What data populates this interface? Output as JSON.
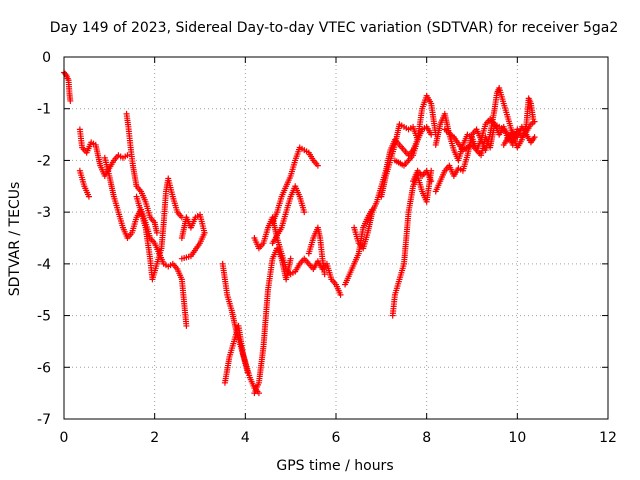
{
  "chart_data": {
    "type": "scatter",
    "title": "Day 149 of 2023, Sidereal Day-to-day VTEC variation (SDTVAR) for receiver 5ga2",
    "xlabel": "GPS time / hours",
    "ylabel": "SDTVAR / TECUs",
    "xlim": [
      0,
      12
    ],
    "ylim": [
      -7,
      0
    ],
    "xticks": [
      0,
      2,
      4,
      6,
      8,
      10,
      12
    ],
    "yticks": [
      0,
      -1,
      -2,
      -3,
      -4,
      -5,
      -6,
      -7
    ],
    "grid": true,
    "marker": "plus",
    "color": "#ff0000",
    "series": [
      {
        "segments": [
          [
            [
              0.0,
              -0.3
            ],
            [
              0.05,
              -0.35
            ],
            [
              0.1,
              -0.45
            ],
            [
              0.12,
              -0.7
            ],
            [
              0.14,
              -0.85
            ]
          ],
          [
            [
              0.35,
              -1.4
            ],
            [
              0.4,
              -1.75
            ],
            [
              0.5,
              -1.85
            ],
            [
              0.6,
              -1.65
            ],
            [
              0.7,
              -1.7
            ],
            [
              0.8,
              -2.1
            ],
            [
              0.9,
              -2.3
            ],
            [
              1.0,
              -2.15
            ],
            [
              1.1,
              -2.0
            ],
            [
              1.2,
              -1.9
            ],
            [
              1.3,
              -1.95
            ],
            [
              1.4,
              -1.9
            ]
          ],
          [
            [
              0.35,
              -2.2
            ],
            [
              0.45,
              -2.5
            ],
            [
              0.55,
              -2.7
            ]
          ],
          [
            [
              0.9,
              -1.95
            ],
            [
              1.0,
              -2.3
            ],
            [
              1.1,
              -2.7
            ],
            [
              1.2,
              -3.0
            ],
            [
              1.3,
              -3.3
            ],
            [
              1.4,
              -3.5
            ],
            [
              1.5,
              -3.4
            ],
            [
              1.6,
              -3.1
            ],
            [
              1.7,
              -2.95
            ],
            [
              1.8,
              -3.2
            ],
            [
              1.9,
              -3.5
            ],
            [
              2.0,
              -3.6
            ],
            [
              2.1,
              -3.8
            ],
            [
              2.2,
              -4.0
            ],
            [
              2.3,
              -4.05
            ],
            [
              2.4,
              -4.0
            ],
            [
              2.5,
              -4.1
            ],
            [
              2.6,
              -4.3
            ],
            [
              2.7,
              -5.2
            ]
          ],
          [
            [
              1.38,
              -1.1
            ],
            [
              1.42,
              -1.35
            ],
            [
              1.47,
              -1.75
            ],
            [
              1.52,
              -2.1
            ],
            [
              1.6,
              -2.5
            ],
            [
              1.7,
              -2.6
            ],
            [
              1.8,
              -2.8
            ],
            [
              1.9,
              -3.1
            ],
            [
              2.0,
              -3.2
            ],
            [
              2.05,
              -3.4
            ]
          ],
          [
            [
              1.6,
              -2.7
            ],
            [
              1.7,
              -3.0
            ],
            [
              1.8,
              -3.3
            ],
            [
              1.9,
              -3.9
            ],
            [
              1.95,
              -4.3
            ],
            [
              2.05,
              -4.0
            ],
            [
              2.15,
              -3.7
            ],
            [
              2.2,
              -3.2
            ],
            [
              2.25,
              -2.6
            ],
            [
              2.3,
              -2.35
            ],
            [
              2.4,
              -2.7
            ],
            [
              2.5,
              -3.0
            ],
            [
              2.6,
              -3.1
            ]
          ],
          [
            [
              2.6,
              -3.5
            ],
            [
              2.7,
              -3.1
            ],
            [
              2.8,
              -3.3
            ],
            [
              2.9,
              -3.1
            ],
            [
              3.0,
              -3.05
            ],
            [
              3.1,
              -3.4
            ]
          ],
          [
            [
              2.6,
              -3.9
            ],
            [
              2.8,
              -3.85
            ],
            [
              3.0,
              -3.6
            ],
            [
              3.1,
              -3.4
            ]
          ],
          [
            [
              3.5,
              -4.0
            ],
            [
              3.6,
              -4.6
            ],
            [
              3.7,
              -4.9
            ],
            [
              3.8,
              -5.3
            ],
            [
              3.9,
              -5.6
            ],
            [
              4.0,
              -5.9
            ],
            [
              4.1,
              -6.2
            ],
            [
              4.2,
              -6.4
            ],
            [
              4.3,
              -6.5
            ]
          ],
          [
            [
              3.55,
              -6.3
            ],
            [
              3.65,
              -5.8
            ],
            [
              3.75,
              -5.5
            ],
            [
              3.85,
              -5.2
            ],
            [
              3.95,
              -5.75
            ],
            [
              4.05,
              -6.1
            ]
          ],
          [
            [
              4.2,
              -6.5
            ],
            [
              4.3,
              -6.3
            ],
            [
              4.4,
              -5.6
            ],
            [
              4.5,
              -4.5
            ],
            [
              4.6,
              -3.9
            ],
            [
              4.7,
              -3.7
            ],
            [
              4.8,
              -3.9
            ],
            [
              4.9,
              -4.3
            ],
            [
              5.0,
              -3.9
            ]
          ],
          [
            [
              4.2,
              -3.5
            ],
            [
              4.3,
              -3.7
            ],
            [
              4.4,
              -3.6
            ],
            [
              4.5,
              -3.3
            ],
            [
              4.6,
              -3.1
            ],
            [
              4.7,
              -3.5
            ],
            [
              4.8,
              -3.8
            ],
            [
              4.9,
              -4.1
            ],
            [
              5.0,
              -4.2
            ],
            [
              5.1,
              -4.15
            ],
            [
              5.2,
              -4.0
            ],
            [
              5.3,
              -3.9
            ],
            [
              5.4,
              -4.0
            ],
            [
              5.5,
              -4.1
            ],
            [
              5.6,
              -3.95
            ],
            [
              5.7,
              -4.1
            ],
            [
              5.8,
              -4.0
            ],
            [
              5.9,
              -4.3
            ],
            [
              6.0,
              -4.4
            ],
            [
              6.1,
              -4.6
            ]
          ],
          [
            [
              4.6,
              -3.2
            ],
            [
              4.7,
              -3.0
            ],
            [
              4.8,
              -2.7
            ],
            [
              4.9,
              -2.5
            ],
            [
              5.0,
              -2.3
            ],
            [
              5.1,
              -2.0
            ],
            [
              5.2,
              -1.75
            ],
            [
              5.3,
              -1.8
            ],
            [
              5.4,
              -1.85
            ],
            [
              5.5,
              -2.0
            ],
            [
              5.6,
              -2.1
            ]
          ],
          [
            [
              4.6,
              -3.6
            ],
            [
              4.8,
              -3.3
            ],
            [
              4.9,
              -3.0
            ],
            [
              5.0,
              -2.7
            ],
            [
              5.1,
              -2.5
            ],
            [
              5.2,
              -2.7
            ],
            [
              5.3,
              -3.0
            ]
          ],
          [
            [
              5.4,
              -3.8
            ],
            [
              5.5,
              -3.5
            ],
            [
              5.6,
              -3.3
            ],
            [
              5.65,
              -3.5
            ],
            [
              5.7,
              -3.9
            ],
            [
              5.75,
              -4.2
            ]
          ],
          [
            [
              6.4,
              -3.3
            ],
            [
              6.5,
              -3.6
            ],
            [
              6.6,
              -3.7
            ],
            [
              6.7,
              -3.4
            ],
            [
              6.8,
              -3.0
            ],
            [
              6.9,
              -2.8
            ],
            [
              7.0,
              -2.5
            ],
            [
              7.1,
              -2.2
            ],
            [
              7.2,
              -1.8
            ],
            [
              7.3,
              -1.6
            ],
            [
              7.4,
              -1.7
            ],
            [
              7.5,
              -1.8
            ],
            [
              7.6,
              -1.9
            ],
            [
              7.7,
              -1.8
            ],
            [
              7.8,
              -1.6
            ],
            [
              7.9,
              -1.4
            ],
            [
              8.0,
              -1.35
            ],
            [
              8.1,
              -1.5
            ]
          ],
          [
            [
              6.2,
              -4.4
            ],
            [
              6.3,
              -4.2
            ],
            [
              6.4,
              -4.0
            ],
            [
              6.5,
              -3.8
            ],
            [
              6.6,
              -3.3
            ],
            [
              6.7,
              -3.1
            ],
            [
              6.8,
              -2.95
            ]
          ],
          [
            [
              7.0,
              -2.7
            ],
            [
              7.1,
              -2.3
            ],
            [
              7.2,
              -2.0
            ],
            [
              7.3,
              -1.7
            ],
            [
              7.4,
              -1.3
            ],
            [
              7.5,
              -1.35
            ],
            [
              7.6,
              -1.4
            ],
            [
              7.7,
              -1.35
            ],
            [
              7.8,
              -1.6
            ],
            [
              7.9,
              -1.4
            ]
          ],
          [
            [
              7.25,
              -5.0
            ],
            [
              7.3,
              -4.6
            ],
            [
              7.4,
              -4.3
            ],
            [
              7.5,
              -4.0
            ],
            [
              7.55,
              -3.5
            ],
            [
              7.6,
              -3.0
            ],
            [
              7.7,
              -2.5
            ],
            [
              7.8,
              -2.3
            ],
            [
              7.9,
              -2.6
            ],
            [
              8.0,
              -2.8
            ],
            [
              8.1,
              -2.2
            ]
          ],
          [
            [
              7.3,
              -2.0
            ],
            [
              7.5,
              -2.1
            ],
            [
              7.7,
              -1.9
            ],
            [
              7.8,
              -1.6
            ],
            [
              7.9,
              -1.0
            ],
            [
              8.0,
              -0.75
            ],
            [
              8.1,
              -0.9
            ],
            [
              8.2,
              -1.5
            ]
          ],
          [
            [
              7.7,
              -2.4
            ],
            [
              7.8,
              -2.2
            ],
            [
              7.9,
              -2.3
            ],
            [
              8.0,
              -2.2
            ],
            [
              8.1,
              -2.4
            ]
          ],
          [
            [
              8.2,
              -1.7
            ],
            [
              8.3,
              -1.3
            ],
            [
              8.4,
              -1.1
            ],
            [
              8.5,
              -1.5
            ],
            [
              8.6,
              -1.8
            ],
            [
              8.7,
              -2.0
            ],
            [
              8.8,
              -1.7
            ],
            [
              8.9,
              -1.5
            ],
            [
              9.0,
              -1.55
            ],
            [
              9.1,
              -1.8
            ],
            [
              9.2,
              -1.6
            ],
            [
              9.3,
              -1.3
            ],
            [
              9.4,
              -1.2
            ],
            [
              9.5,
              -1.3
            ],
            [
              9.6,
              -1.35
            ],
            [
              9.7,
              -1.4
            ],
            [
              9.8,
              -1.5
            ],
            [
              9.9,
              -1.7
            ]
          ],
          [
            [
              8.2,
              -2.6
            ],
            [
              8.3,
              -2.4
            ],
            [
              8.4,
              -2.2
            ],
            [
              8.5,
              -2.1
            ],
            [
              8.6,
              -2.3
            ],
            [
              8.7,
              -2.15
            ],
            [
              8.8,
              -2.2
            ],
            [
              8.9,
              -1.9
            ],
            [
              9.0,
              -1.5
            ],
            [
              9.1,
              -1.4
            ],
            [
              9.2,
              -1.6
            ],
            [
              9.3,
              -1.8
            ],
            [
              9.4,
              -1.5
            ],
            [
              9.5,
              -1.0
            ],
            [
              9.55,
              -0.7
            ],
            [
              9.6,
              -0.6
            ],
            [
              9.7,
              -0.9
            ],
            [
              9.8,
              -1.2
            ],
            [
              9.9,
              -1.5
            ],
            [
              10.0,
              -1.75
            ],
            [
              10.1,
              -1.6
            ],
            [
              10.2,
              -1.3
            ],
            [
              10.25,
              -0.8
            ],
            [
              10.3,
              -0.9
            ],
            [
              10.35,
              -1.2
            ]
          ],
          [
            [
              8.4,
              -1.4
            ],
            [
              8.6,
              -1.55
            ],
            [
              8.8,
              -1.8
            ],
            [
              9.0,
              -1.7
            ],
            [
              9.2,
              -1.9
            ],
            [
              9.3,
              -1.55
            ],
            [
              9.4,
              -1.75
            ],
            [
              9.5,
              -1.3
            ],
            [
              9.6,
              -1.5
            ],
            [
              9.7,
              -1.35
            ],
            [
              9.8,
              -1.6
            ],
            [
              9.9,
              -1.45
            ],
            [
              10.0,
              -1.55
            ],
            [
              10.1,
              -1.35
            ],
            [
              10.2,
              -1.5
            ],
            [
              10.3,
              -1.65
            ],
            [
              10.38,
              -1.55
            ]
          ],
          [
            [
              9.7,
              -1.7
            ],
            [
              9.8,
              -1.55
            ],
            [
              9.9,
              -1.65
            ],
            [
              10.0,
              -1.4
            ],
            [
              10.1,
              -1.55
            ],
            [
              10.2,
              -1.45
            ],
            [
              10.3,
              -1.3
            ],
            [
              10.38,
              -1.25
            ]
          ]
        ]
      }
    ]
  }
}
